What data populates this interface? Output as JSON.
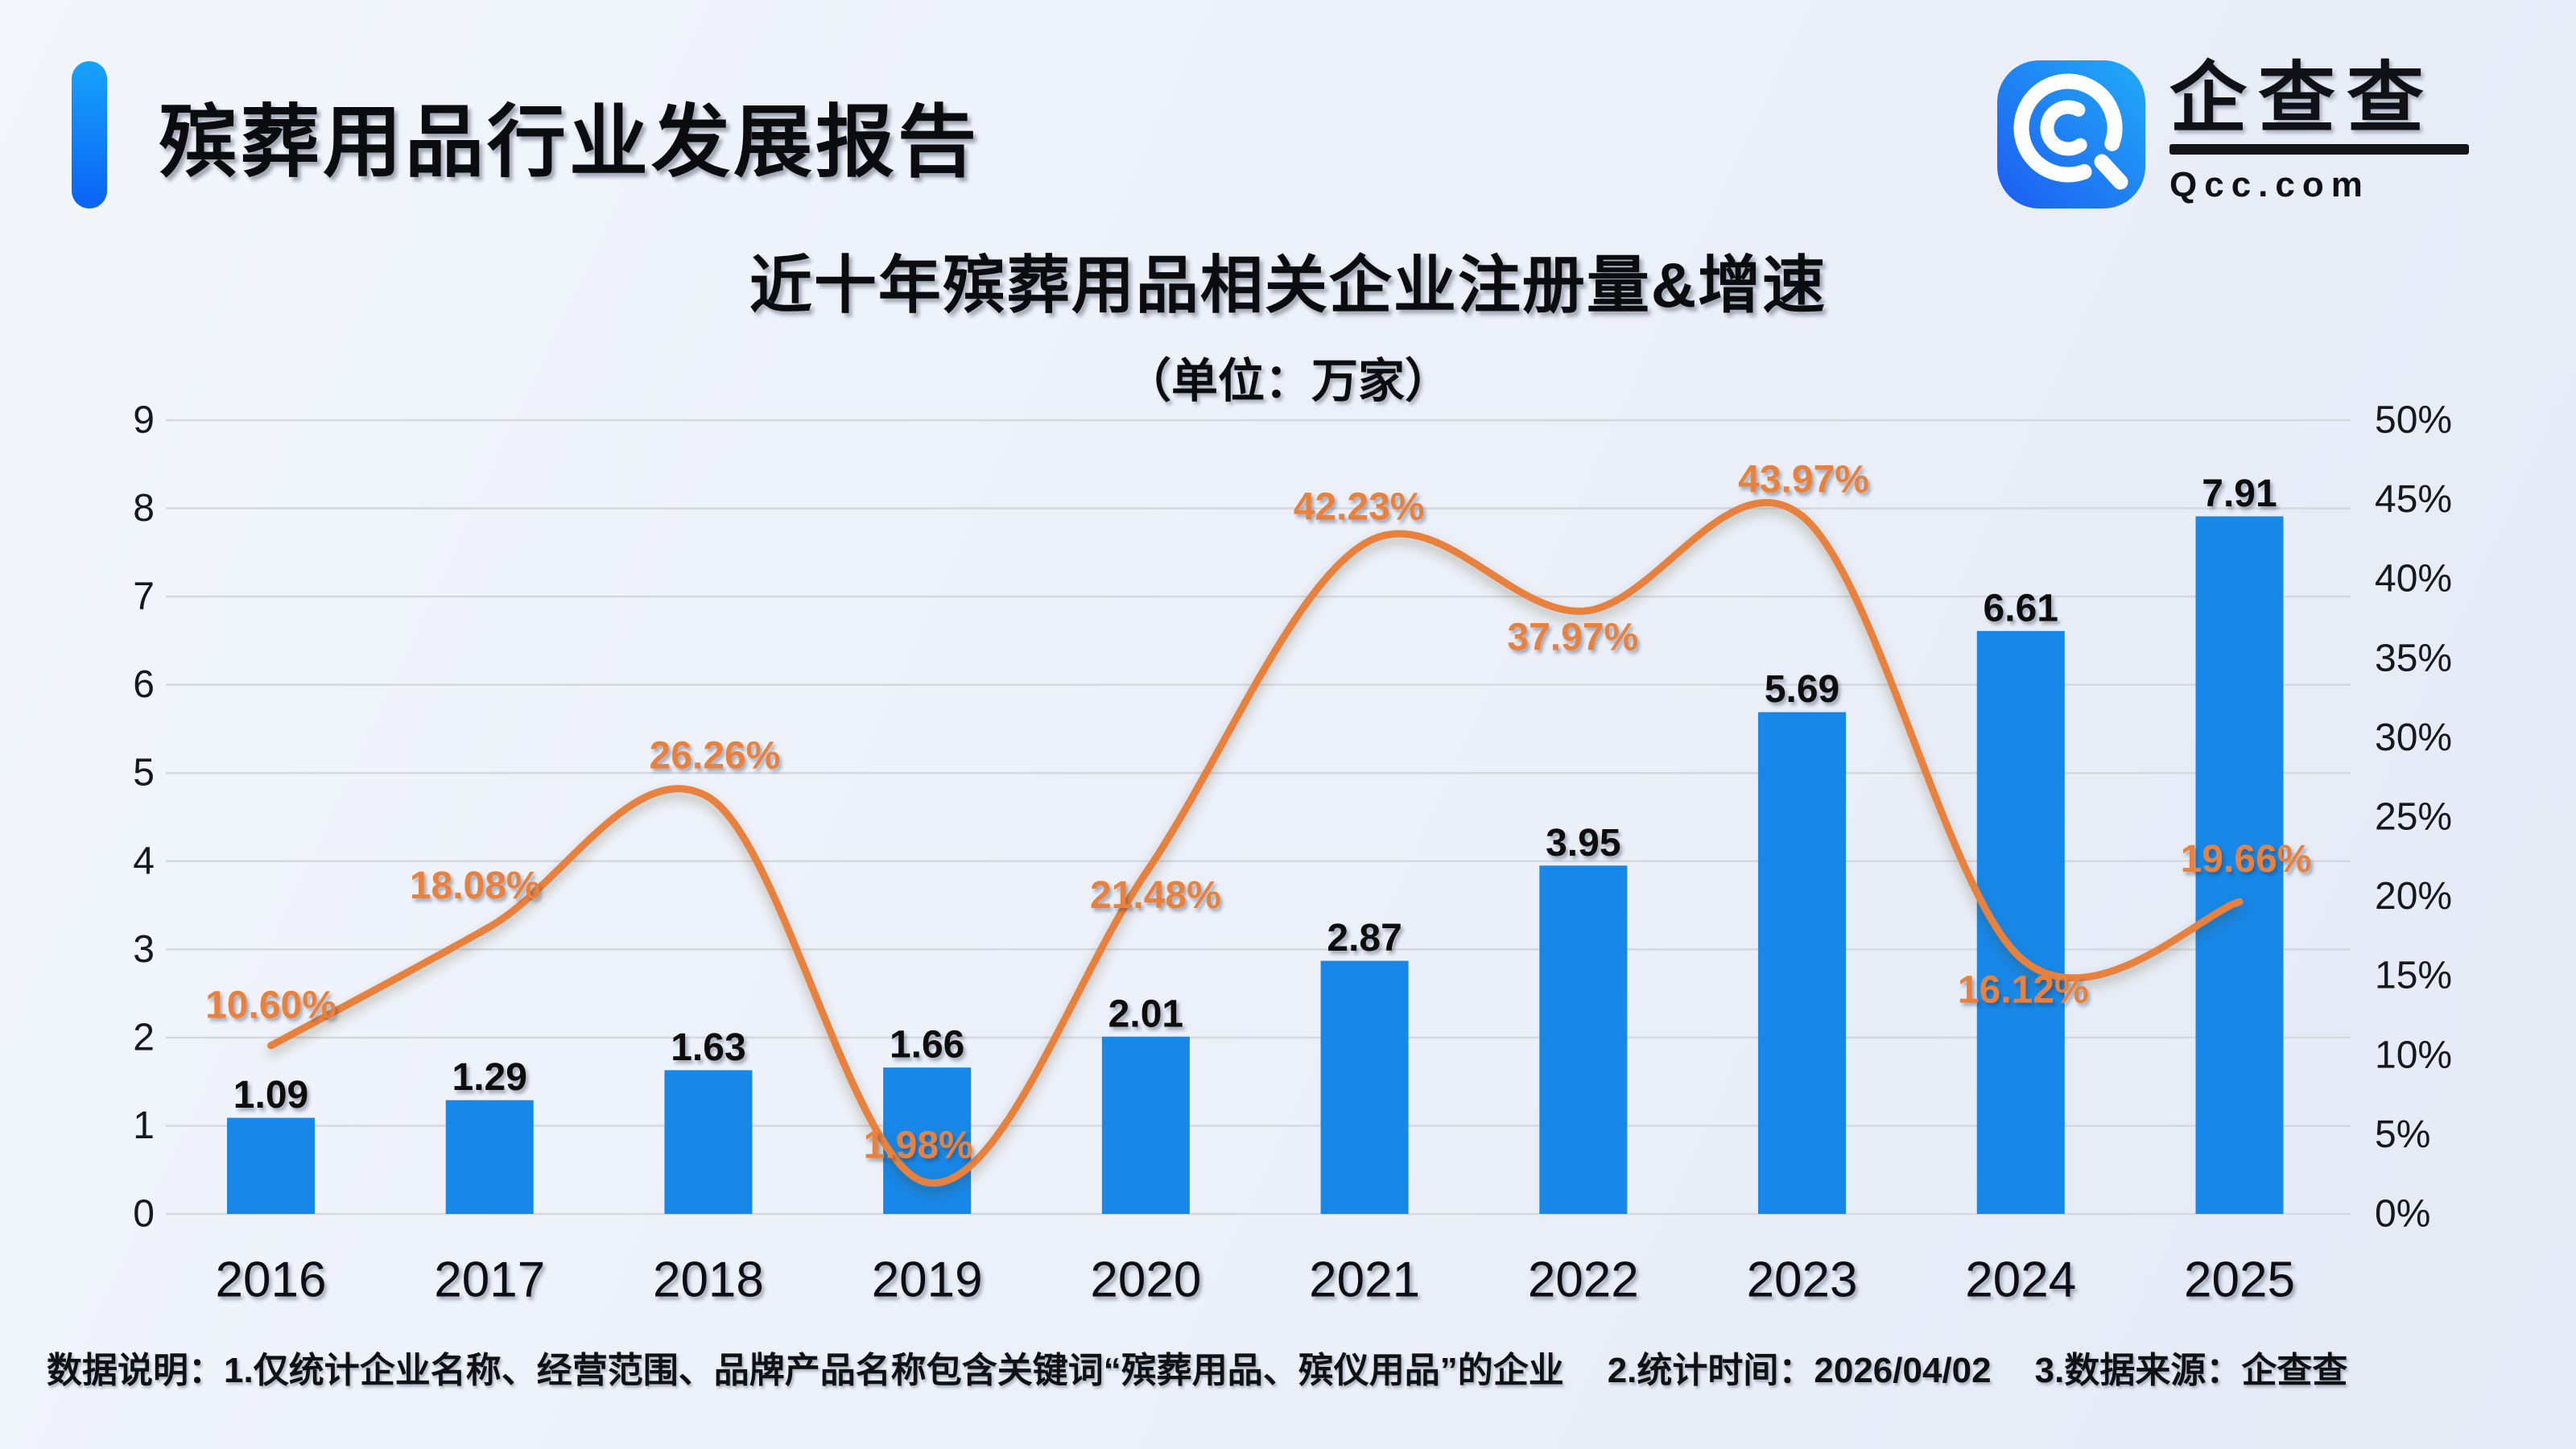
{
  "header": {
    "title": "殡葬用品行业发展报告"
  },
  "logo": {
    "icon": "qcc-magnifier-icon",
    "brand": "企查查",
    "domain": "Qcc.com"
  },
  "footer": {
    "note": "数据说明：1.仅统计企业名称、经营范围、品牌产品名称包含关键词“殡葬用品、殡仪用品”的企业",
    "time": "2.统计时间：2026/04/02",
    "source": "3.数据来源：企查查"
  },
  "colors": {
    "bar": "#1788E8",
    "line": "#E8813C",
    "accent_pill_top": "#16A3FA",
    "accent_pill_bottom": "#0B62F4",
    "logo_gradient_start": "#1D5CF0",
    "logo_gradient_end": "#21ACF8",
    "gridline": "#D5D8DE"
  },
  "chart_data": {
    "type": "bar+line combo",
    "title": "近十年殡葬用品相关企业注册量&增速",
    "subtitle": "（单位：万家）",
    "categories": [
      "2016",
      "2017",
      "2018",
      "2019",
      "2020",
      "2021",
      "2022",
      "2023",
      "2024",
      "2025"
    ],
    "series": [
      {
        "name": "注册量(万家)",
        "type": "bar",
        "axis": "left",
        "color": "#1788E8",
        "values": [
          1.09,
          1.29,
          1.63,
          1.66,
          2.01,
          2.87,
          3.95,
          5.69,
          6.61,
          7.91
        ],
        "labels": [
          "1.09",
          "1.29",
          "1.63",
          "1.66",
          "2.01",
          "2.87",
          "3.95",
          "5.69",
          "6.61",
          "7.91"
        ]
      },
      {
        "name": "增速",
        "type": "line",
        "axis": "right",
        "color": "#E8813C",
        "smooth": true,
        "values": [
          10.6,
          18.08,
          26.26,
          1.98,
          21.48,
          42.23,
          37.97,
          43.97,
          16.12,
          19.66
        ],
        "labels": [
          "10.60%",
          "18.08%",
          "26.26%",
          "1.98%",
          "21.48%",
          "42.23%",
          "37.97%",
          "43.97%",
          "16.12%",
          "19.66%"
        ]
      }
    ],
    "left_axis": {
      "min": 0,
      "max": 9,
      "ticks": [
        "0",
        "1",
        "2",
        "3",
        "4",
        "5",
        "6",
        "7",
        "8",
        "9"
      ]
    },
    "right_axis": {
      "min": 0,
      "max": 50,
      "ticks": [
        "0%",
        "5%",
        "10%",
        "15%",
        "20%",
        "25%",
        "30%",
        "35%",
        "40%",
        "45%",
        "50%"
      ]
    },
    "grid": true,
    "legend_position": "none"
  }
}
